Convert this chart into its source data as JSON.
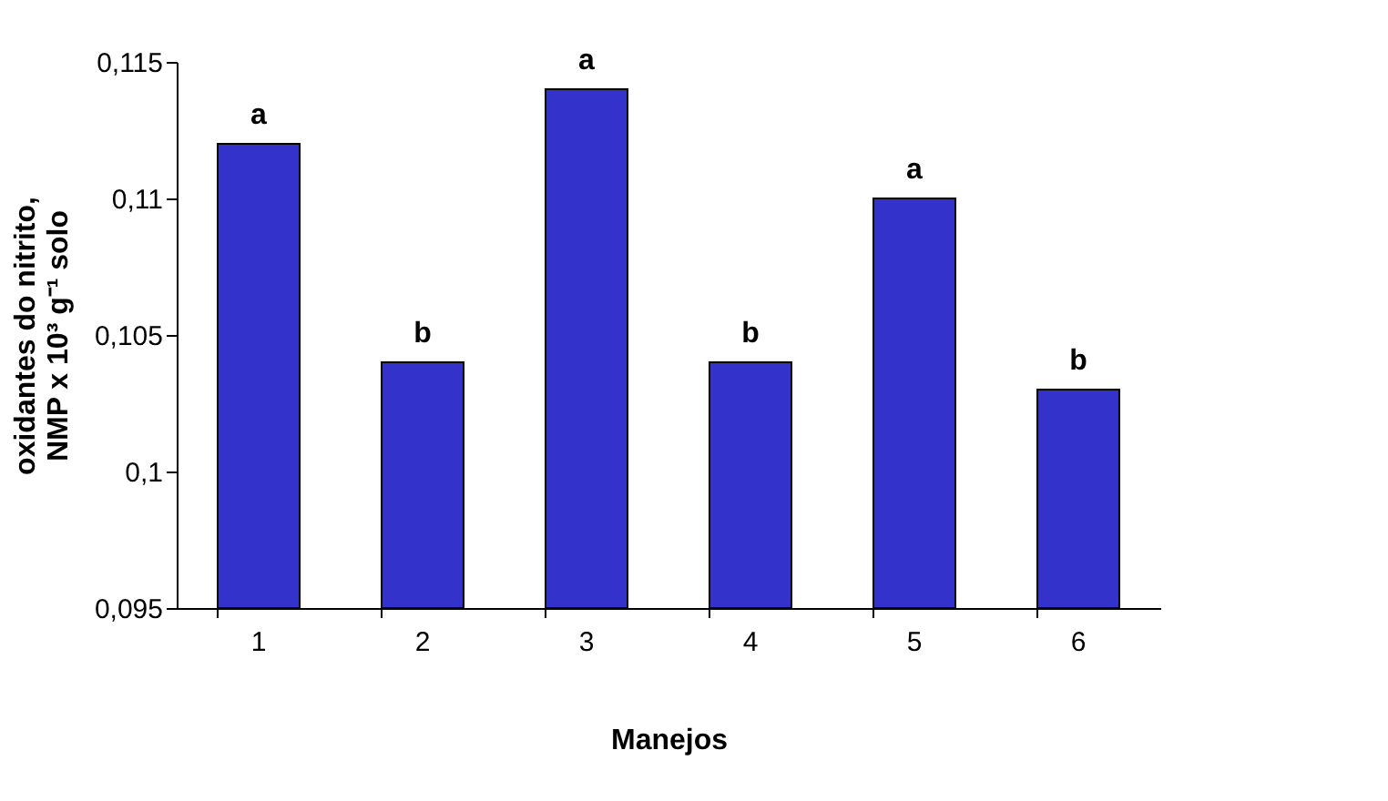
{
  "chart_data": {
    "type": "bar",
    "xlabel": "Manejos",
    "ylabel": "oxidantes do nitrito,\nNMP x 10³ g⁻¹ solo",
    "categories": [
      "1",
      "2",
      "3",
      "4",
      "5",
      "6"
    ],
    "values": [
      0.112,
      0.104,
      0.114,
      0.104,
      0.11,
      0.103
    ],
    "color": "#3333cc",
    "ylim": [
      0.095,
      0.115
    ],
    "yticks": [
      {
        "value": 0.095,
        "label": "0,095"
      },
      {
        "value": 0.1,
        "label": "0,1"
      },
      {
        "value": 0.105,
        "label": "0,105"
      },
      {
        "value": 0.11,
        "label": "0,11"
      },
      {
        "value": 0.115,
        "label": "0,115"
      }
    ],
    "annotations": [
      {
        "text": "a",
        "x": "1",
        "y": 0.112
      },
      {
        "text": "b",
        "x": "2",
        "y": 0.104
      },
      {
        "text": "a",
        "x": "3",
        "y": 0.114
      },
      {
        "text": "b",
        "x": "4",
        "y": 0.104
      },
      {
        "text": "a",
        "x": "5",
        "y": 0.11
      },
      {
        "text": "b",
        "x": "6",
        "y": 0.103
      }
    ],
    "grid": false
  }
}
